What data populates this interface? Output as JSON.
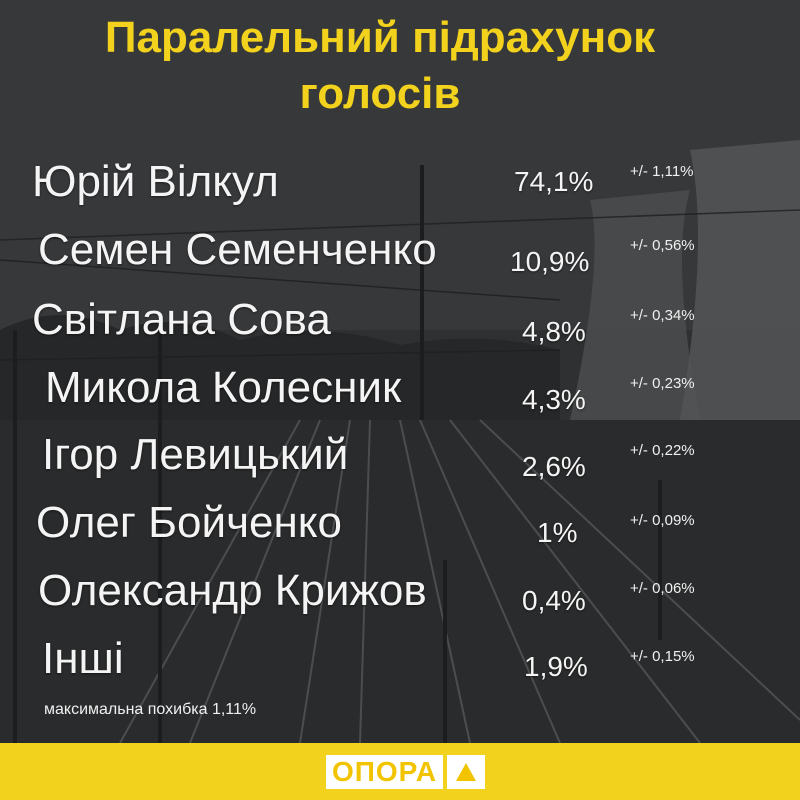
{
  "title": {
    "line1": "Паралельний підрахунок",
    "line2": "голосів"
  },
  "rows": [
    {
      "name": "Юрій Вілкул",
      "percent": "74,1%",
      "error": "+/- 1,11%"
    },
    {
      "name": "Семен Семенченко",
      "percent": "10,9%",
      "error": "+/- 0,56%"
    },
    {
      "name": "Світлана Сова",
      "percent": "4,8%",
      "error": "+/- 0,34%"
    },
    {
      "name": "Микола Колесник",
      "percent": "4,3%",
      "error": "+/- 0,23%"
    },
    {
      "name": "Ігор Левицький",
      "percent": "2,6%",
      "error": "+/- 0,22%"
    },
    {
      "name": "Олег Бойченко",
      "percent": "1%",
      "error": "+/- 0,09%"
    },
    {
      "name": "Олександр Крижов",
      "percent": "0,4%",
      "error": "+/- 0,06%"
    },
    {
      "name": "Інші",
      "percent": "1,9%",
      "error": "+/- 0,15%"
    }
  ],
  "note": "максимальна похибка 1,11%",
  "footer": {
    "logo_text": "ОПОРА",
    "logo_icon": "triangle-icon"
  },
  "colors": {
    "accent": "#f2d21c",
    "text": "#f4f4f4",
    "background": "#2f3031"
  }
}
